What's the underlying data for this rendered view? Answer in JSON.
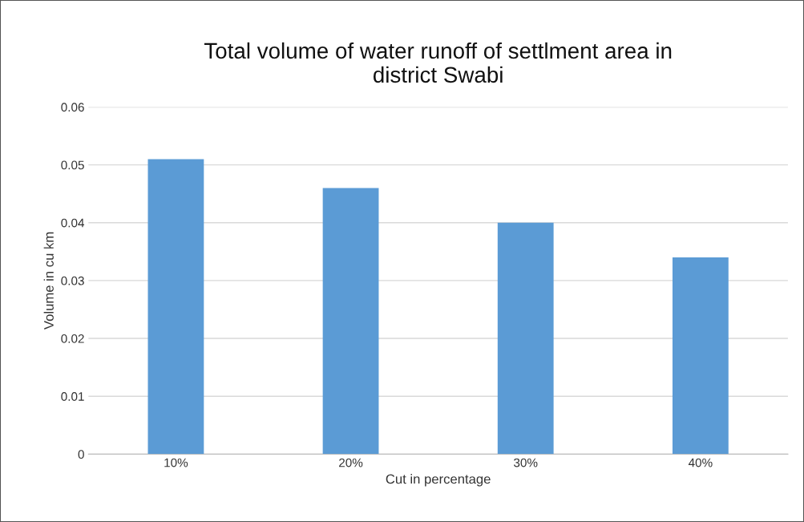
{
  "chart_data": {
    "type": "bar",
    "title": "Total volume of water runoff of settlment area in\ndistrict Swabi",
    "xlabel": "Cut in percentage",
    "ylabel": "Volume in cu km",
    "categories": [
      "10%",
      "20%",
      "30%",
      "40%"
    ],
    "values": [
      0.051,
      0.046,
      0.04,
      0.034
    ],
    "color": "#5b9bd5",
    "ylim": [
      0,
      0.06
    ],
    "yticks": [
      {
        "value": 0,
        "label": "0"
      },
      0.01,
      0.02,
      0.03,
      0.04,
      0.05,
      0.06
    ],
    "grid": "y"
  }
}
